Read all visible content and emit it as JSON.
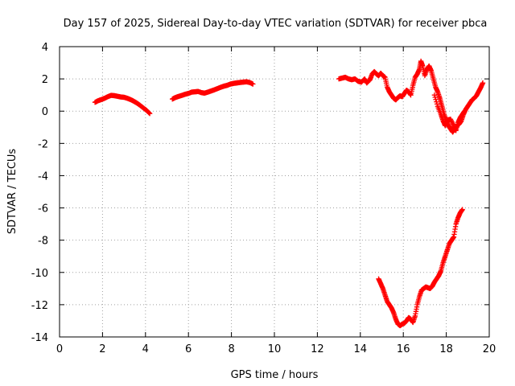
{
  "chart_data": {
    "type": "scatter",
    "title": "Day 157 of 2025, Sidereal Day-to-day VTEC variation (SDTVAR) for receiver pbca",
    "xlabel": "GPS time / hours",
    "ylabel": "SDTVAR / TECUs",
    "xlim": [
      0,
      20
    ],
    "ylim": [
      -14,
      4
    ],
    "xticks": [
      0,
      2,
      4,
      6,
      8,
      10,
      12,
      14,
      16,
      18,
      20
    ],
    "yticks": [
      -14,
      -12,
      -10,
      -8,
      -6,
      -4,
      -2,
      0,
      2,
      4
    ],
    "grid": true,
    "marker": "plus",
    "color": "#ff0000",
    "series": [
      {
        "name": "pbca",
        "segments": [
          [
            [
              1.65,
              0.55
            ],
            [
              1.8,
              0.65
            ],
            [
              1.95,
              0.72
            ],
            [
              2.1,
              0.8
            ],
            [
              2.25,
              0.9
            ],
            [
              2.4,
              0.98
            ],
            [
              2.55,
              0.96
            ],
            [
              2.7,
              0.92
            ],
            [
              2.85,
              0.88
            ],
            [
              3.0,
              0.86
            ],
            [
              3.15,
              0.8
            ],
            [
              3.3,
              0.72
            ],
            [
              3.45,
              0.62
            ],
            [
              3.6,
              0.5
            ],
            [
              3.75,
              0.36
            ],
            [
              3.9,
              0.2
            ],
            [
              4.05,
              0.05
            ],
            [
              4.2,
              -0.15
            ]
          ],
          [
            [
              5.25,
              0.75
            ],
            [
              5.4,
              0.85
            ],
            [
              5.55,
              0.92
            ],
            [
              5.7,
              0.98
            ],
            [
              5.85,
              1.05
            ],
            [
              6.0,
              1.1
            ],
            [
              6.15,
              1.18
            ],
            [
              6.3,
              1.2
            ],
            [
              6.45,
              1.22
            ],
            [
              6.6,
              1.15
            ],
            [
              6.75,
              1.12
            ],
            [
              6.9,
              1.18
            ],
            [
              7.05,
              1.25
            ],
            [
              7.2,
              1.32
            ],
            [
              7.35,
              1.4
            ],
            [
              7.5,
              1.48
            ],
            [
              7.65,
              1.55
            ],
            [
              7.8,
              1.6
            ],
            [
              7.95,
              1.68
            ],
            [
              8.1,
              1.72
            ],
            [
              8.25,
              1.75
            ],
            [
              8.4,
              1.78
            ],
            [
              8.55,
              1.8
            ],
            [
              8.7,
              1.82
            ],
            [
              8.85,
              1.78
            ],
            [
              9.0,
              1.68
            ]
          ],
          [
            [
              13.0,
              2.0
            ],
            [
              13.15,
              2.05
            ],
            [
              13.3,
              2.1
            ],
            [
              13.45,
              2.0
            ],
            [
              13.6,
              1.95
            ],
            [
              13.75,
              2.0
            ],
            [
              13.9,
              1.85
            ],
            [
              14.05,
              1.8
            ],
            [
              14.2,
              2.0
            ],
            [
              14.3,
              1.75
            ],
            [
              14.45,
              1.95
            ],
            [
              14.55,
              2.3
            ],
            [
              14.65,
              2.45
            ],
            [
              14.75,
              2.3
            ],
            [
              14.85,
              2.2
            ],
            [
              14.95,
              2.35
            ],
            [
              15.05,
              2.2
            ],
            [
              15.15,
              2.1
            ],
            [
              15.25,
              1.5
            ],
            [
              15.35,
              1.2
            ],
            [
              15.45,
              1.0
            ],
            [
              15.55,
              0.8
            ],
            [
              15.65,
              0.7
            ],
            [
              15.75,
              0.85
            ],
            [
              15.85,
              0.95
            ],
            [
              15.95,
              0.9
            ],
            [
              16.05,
              1.1
            ],
            [
              16.15,
              1.3
            ],
            [
              16.25,
              1.2
            ],
            [
              16.35,
              1.0
            ],
            [
              16.45,
              1.6
            ],
            [
              16.55,
              2.1
            ],
            [
              16.65,
              2.3
            ],
            [
              16.75,
              2.6
            ],
            [
              16.82,
              3.1
            ],
            [
              16.9,
              2.8
            ],
            [
              17.0,
              2.2
            ],
            [
              17.1,
              2.6
            ],
            [
              17.2,
              2.8
            ],
            [
              17.3,
              2.5
            ],
            [
              17.4,
              2.0
            ],
            [
              17.5,
              1.5
            ],
            [
              17.6,
              1.2
            ],
            [
              17.7,
              0.8
            ],
            [
              17.8,
              0.3
            ],
            [
              17.9,
              -0.2
            ],
            [
              18.0,
              -0.6
            ],
            [
              18.1,
              -0.9
            ],
            [
              18.2,
              -1.1
            ],
            [
              18.3,
              -1.3
            ],
            [
              18.4,
              -1.1
            ],
            [
              18.5,
              -0.9
            ],
            [
              18.6,
              -0.8
            ],
            [
              18.7,
              -0.6
            ],
            [
              18.8,
              -0.2
            ],
            [
              18.9,
              0.1
            ],
            [
              19.0,
              0.3
            ],
            [
              19.1,
              0.5
            ],
            [
              19.2,
              0.7
            ],
            [
              19.3,
              0.8
            ],
            [
              19.4,
              0.95
            ],
            [
              19.5,
              1.2
            ],
            [
              19.6,
              1.45
            ],
            [
              19.7,
              1.75
            ]
          ],
          [
            [
              17.45,
              1.0
            ],
            [
              17.6,
              0.3
            ],
            [
              17.75,
              -0.2
            ],
            [
              17.85,
              -0.6
            ],
            [
              17.95,
              -0.9
            ],
            [
              18.05,
              -0.55
            ],
            [
              18.2,
              -0.5
            ],
            [
              18.35,
              -0.9
            ],
            [
              18.45,
              -1.2
            ],
            [
              18.55,
              -0.7
            ],
            [
              18.65,
              -0.4
            ],
            [
              18.75,
              -0.2
            ],
            [
              18.85,
              0.0
            ]
          ],
          [
            [
              14.85,
              -10.4
            ],
            [
              14.95,
              -10.7
            ],
            [
              15.05,
              -11.0
            ],
            [
              15.15,
              -11.4
            ],
            [
              15.25,
              -11.8
            ],
            [
              15.35,
              -12.0
            ],
            [
              15.45,
              -12.2
            ],
            [
              15.55,
              -12.5
            ],
            [
              15.65,
              -12.9
            ],
            [
              15.75,
              -13.2
            ],
            [
              15.85,
              -13.3
            ],
            [
              15.95,
              -13.2
            ],
            [
              16.05,
              -13.15
            ],
            [
              16.15,
              -13.0
            ],
            [
              16.25,
              -12.8
            ],
            [
              16.35,
              -12.9
            ],
            [
              16.45,
              -13.1
            ],
            [
              16.55,
              -12.7
            ],
            [
              16.65,
              -12.0
            ],
            [
              16.75,
              -11.5
            ],
            [
              16.85,
              -11.1
            ],
            [
              16.95,
              -11.0
            ],
            [
              17.05,
              -10.9
            ],
            [
              17.15,
              -10.95
            ],
            [
              17.25,
              -11.0
            ],
            [
              17.35,
              -10.85
            ],
            [
              17.45,
              -10.6
            ],
            [
              17.55,
              -10.4
            ],
            [
              17.65,
              -10.2
            ],
            [
              17.75,
              -9.9
            ],
            [
              17.85,
              -9.4
            ],
            [
              17.95,
              -9.0
            ],
            [
              18.05,
              -8.6
            ],
            [
              18.15,
              -8.2
            ],
            [
              18.25,
              -8.0
            ],
            [
              18.35,
              -7.8
            ],
            [
              18.45,
              -7.0
            ],
            [
              18.55,
              -6.6
            ],
            [
              18.65,
              -6.3
            ],
            [
              18.75,
              -6.1
            ]
          ]
        ]
      }
    ]
  }
}
